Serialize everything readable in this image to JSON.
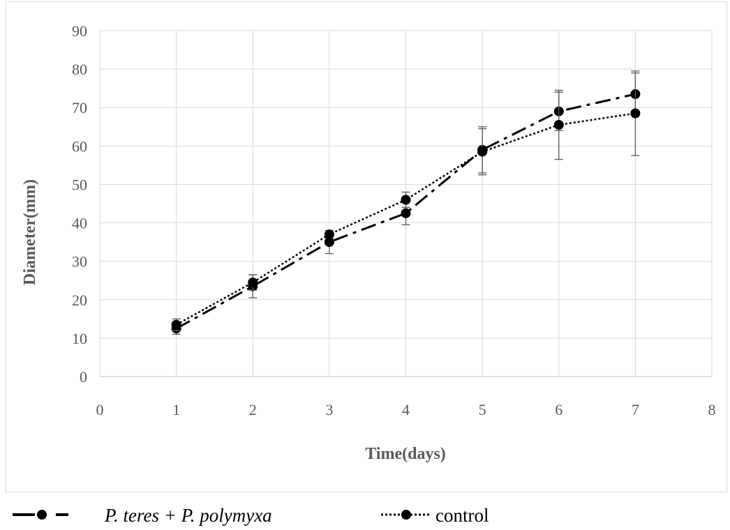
{
  "chart_data": {
    "type": "line",
    "xlabel": "Time(days)",
    "ylabel": "Diameter(mm)",
    "xlim": [
      0,
      8
    ],
    "ylim": [
      0,
      90
    ],
    "x_ticks": [
      0,
      1,
      2,
      3,
      4,
      5,
      6,
      7,
      8
    ],
    "y_ticks": [
      0,
      10,
      20,
      30,
      40,
      50,
      60,
      70,
      80,
      90
    ],
    "grid": true,
    "legend_position": "bottom",
    "x": [
      1,
      2,
      3,
      4,
      5,
      6,
      7
    ],
    "series": [
      {
        "name": "P. teres + P. polymyxa",
        "line_style": "dash-dot",
        "color": "#000000",
        "values": [
          12.5,
          23.5,
          35,
          42.5,
          59,
          69,
          73.5
        ],
        "errors": [
          1.5,
          3,
          3,
          3,
          6,
          5,
          5.5
        ]
      },
      {
        "name": "control",
        "line_style": "dotted",
        "color": "#000000",
        "values": [
          13.5,
          24.5,
          37,
          46,
          58.5,
          65.5,
          68.5
        ],
        "errors": [
          1.5,
          2,
          1,
          2,
          6,
          9,
          11
        ]
      }
    ]
  }
}
